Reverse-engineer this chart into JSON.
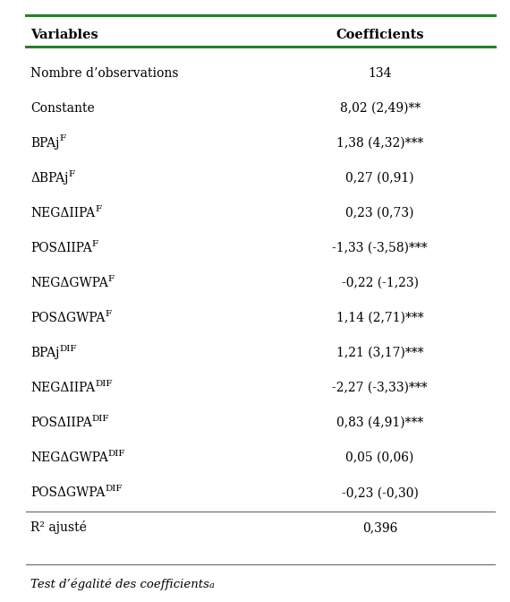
{
  "col1_header": "Variables",
  "col2_header": "Coefficients",
  "rows": [
    {
      "var_base": "Nombre d’observations",
      "var_sup": "",
      "coef": "134"
    },
    {
      "var_base": "Constante",
      "var_sup": "",
      "coef": "8,02 (2,49)**"
    },
    {
      "var_base": "BPAj",
      "var_sup": "F",
      "coef": "1,38 (4,32)***"
    },
    {
      "var_base": "ΔBPAj",
      "var_sup": "F",
      "coef": "0,27 (0,91)"
    },
    {
      "var_base": "NEGΔIIPA",
      "var_sup": "F",
      "coef": "0,23 (0,73)"
    },
    {
      "var_base": "POSΔIIPA",
      "var_sup": "F",
      "coef": "-1,33 (-3,58)***"
    },
    {
      "var_base": "NEGΔGWPA",
      "var_sup": "F",
      "coef": "-0,22 (-1,23)"
    },
    {
      "var_base": "POSΔGWPA",
      "var_sup": "F",
      "coef": "1,14 (2,71)***"
    },
    {
      "var_base": "BPAj",
      "var_sup": "DIF",
      "coef": "1,21 (3,17)***"
    },
    {
      "var_base": "NEGΔIIPA",
      "var_sup": "DIF",
      "coef": "-2,27 (-3,33)***"
    },
    {
      "var_base": "POSΔIIPA",
      "var_sup": "DIF",
      "coef": "0,83 (4,91)***"
    },
    {
      "var_base": "NEGΔGWPA",
      "var_sup": "DIF",
      "coef": "0,05 (0,06)"
    },
    {
      "var_base": "POSΔGWPA",
      "var_sup": "DIF",
      "coef": "-0,23 (-0,30)"
    },
    {
      "var_base": "R² ajusté",
      "var_sup": "",
      "coef": "0,396"
    }
  ],
  "footer_base": "Test d’égalité des coefficients",
  "footer_sup": "a",
  "top_line_color": "#2d7d32",
  "header_line_color": "#2d7d32",
  "sep_line_color": "#666666",
  "bg_color": "#ffffff",
  "header_fontsize": 10.5,
  "row_fontsize": 10.0,
  "sup_fontsize": 7.5,
  "footer_fontsize": 9.5,
  "footer_sup_fontsize": 7.0,
  "fig_width": 5.7,
  "fig_height": 6.72
}
